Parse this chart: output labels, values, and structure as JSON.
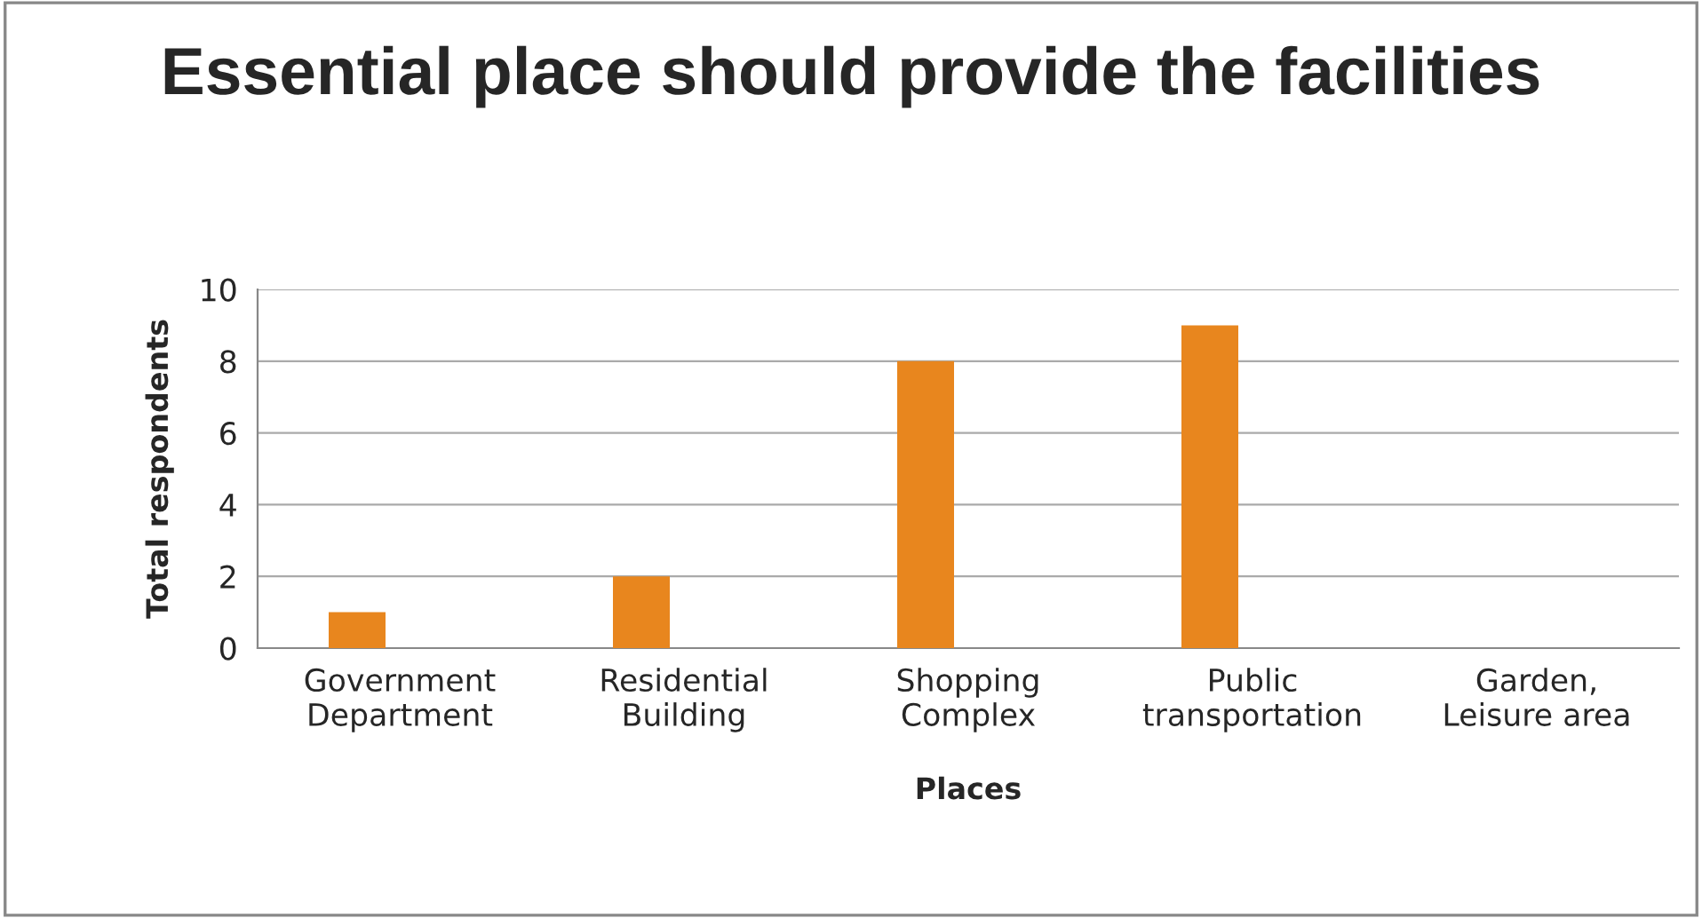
{
  "chart_data": {
    "type": "bar",
    "title": "Essential place should provide the facilities",
    "xlabel": "Places",
    "ylabel": "Total respondents",
    "categories": [
      "Government\nDepartment",
      "Residential\nBuilding",
      "Shopping\nComplex",
      "Public\ntransportation",
      "Garden,\nLeisure area"
    ],
    "values": [
      1,
      2,
      8,
      9,
      0
    ],
    "color": "#e8861e",
    "ylim": [
      0,
      10
    ],
    "yticks": [
      0,
      2,
      4,
      6,
      8,
      10
    ],
    "grid": "y",
    "legend": false
  }
}
